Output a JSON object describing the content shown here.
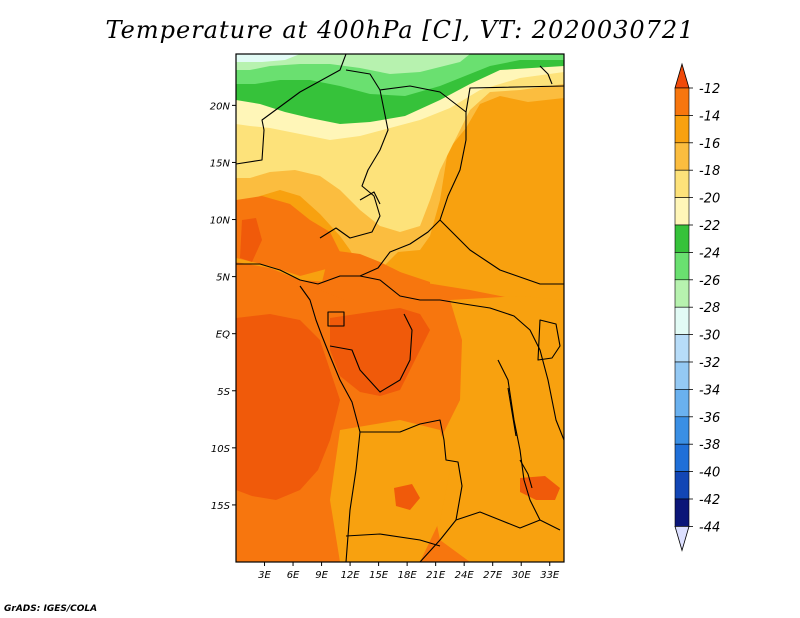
{
  "title": "Temperature at 400hPa [C], VT: 2020030721",
  "credit": "GrADS: IGES/COLA",
  "chart_data": {
    "type": "heatmap",
    "title": "Temperature at 400hPa [C], VT: 2020030721",
    "xlim": [
      0,
      34.5
    ],
    "ylim": [
      -20,
      24.5
    ],
    "x_ticks": [
      {
        "v": 3,
        "label": "3E"
      },
      {
        "v": 6,
        "label": "6E"
      },
      {
        "v": 9,
        "label": "9E"
      },
      {
        "v": 12,
        "label": "12E"
      },
      {
        "v": 15,
        "label": "15E"
      },
      {
        "v": 18,
        "label": "18E"
      },
      {
        "v": 21,
        "label": "21E"
      },
      {
        "v": 24,
        "label": "24E"
      },
      {
        "v": 27,
        "label": "27E"
      },
      {
        "v": 30,
        "label": "30E"
      },
      {
        "v": 33,
        "label": "33E"
      }
    ],
    "y_ticks": [
      {
        "v": 20,
        "label": "20N"
      },
      {
        "v": 15,
        "label": "15N"
      },
      {
        "v": 10,
        "label": "10N"
      },
      {
        "v": 5,
        "label": "5N"
      },
      {
        "v": 0,
        "label": "EQ"
      },
      {
        "v": -5,
        "label": "5S"
      },
      {
        "v": -10,
        "label": "10S"
      },
      {
        "v": -15,
        "label": "15S"
      }
    ],
    "colorbar": {
      "levels": [
        -12,
        -14,
        -16,
        -18,
        -20,
        -22,
        -24,
        -26,
        -28,
        -30,
        -32,
        -34,
        -36,
        -38,
        -40,
        -42,
        -44
      ],
      "labels": [
        "-12",
        "-14",
        "-16",
        "-18",
        "-20",
        "-22",
        "-24",
        "-26",
        "-28",
        "-30",
        "-32",
        "-34",
        "-36",
        "-38",
        "-40",
        "-42",
        "-44"
      ],
      "colors": [
        "#f05a0a",
        "#f7760e",
        "#f8a10f",
        "#fbbd3f",
        "#fde27a",
        "#fff6b8",
        "#36c23a",
        "#6ae070",
        "#b7f2af",
        "#e2fbf5",
        "#b7dcf8",
        "#94c9f4",
        "#6ab1ef",
        "#3a8fe4",
        "#1f6fd8",
        "#1246b5",
        "#0b1678"
      ],
      "top_color": "#f04a0a",
      "bottom_color": "#dde0ff"
    }
  }
}
